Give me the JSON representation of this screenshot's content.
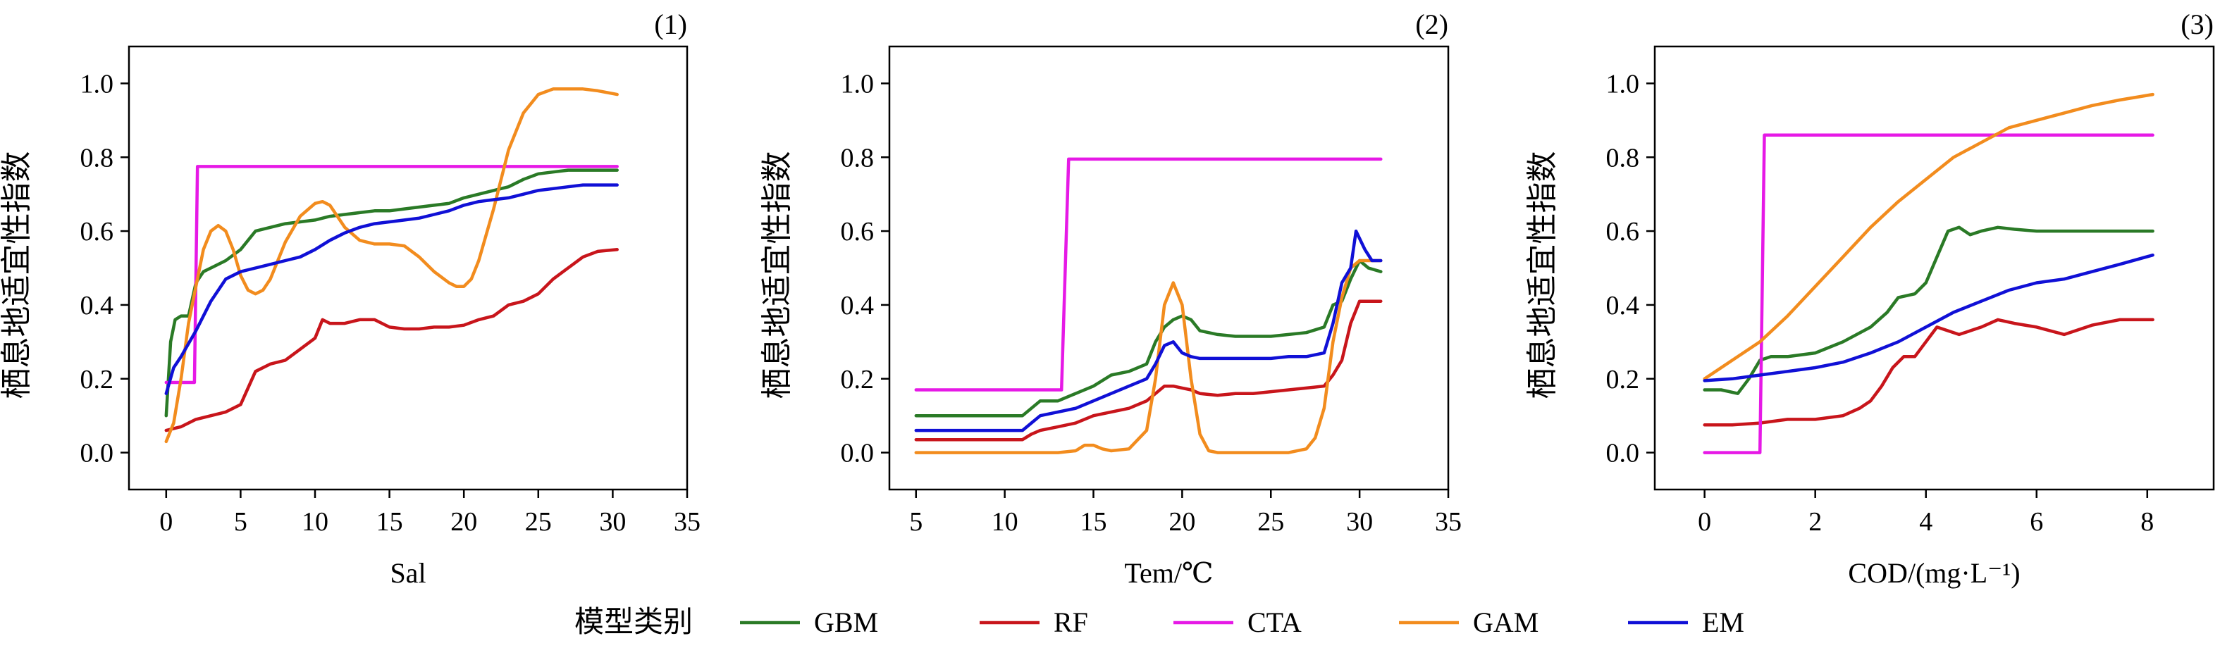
{
  "chart_data": [
    {
      "type": "line",
      "panel_label": "(1)",
      "xlabel": "Sal",
      "ylabel": "栖息地适宜性指数",
      "xlim": [
        -2.5,
        35
      ],
      "ylim": [
        -0.1,
        1.1
      ],
      "xticks": [
        0,
        5,
        10,
        15,
        20,
        25,
        30,
        35
      ],
      "yticks": [
        0.0,
        0.2,
        0.4,
        0.6,
        0.8,
        1.0
      ],
      "series": [
        {
          "name": "GBM",
          "x": [
            0,
            0.3,
            0.6,
            1,
            1.5,
            2,
            2.5,
            3,
            4,
            5,
            6,
            7,
            8,
            9,
            10,
            11,
            12,
            13,
            14,
            15,
            16,
            17,
            18,
            19,
            20,
            21,
            22,
            23,
            24,
            25,
            26,
            27,
            28,
            29,
            30.3
          ],
          "y": [
            0.1,
            0.3,
            0.36,
            0.37,
            0.37,
            0.46,
            0.49,
            0.5,
            0.52,
            0.55,
            0.6,
            0.61,
            0.62,
            0.625,
            0.63,
            0.64,
            0.645,
            0.65,
            0.655,
            0.655,
            0.66,
            0.665,
            0.67,
            0.675,
            0.69,
            0.7,
            0.71,
            0.72,
            0.74,
            0.755,
            0.76,
            0.765,
            0.765,
            0.765,
            0.765
          ]
        },
        {
          "name": "RF",
          "x": [
            0,
            1,
            2,
            3,
            4,
            5,
            6,
            7,
            8,
            9,
            10,
            10.5,
            11,
            12,
            13,
            14,
            15,
            16,
            17,
            18,
            19,
            20,
            21,
            22,
            23,
            24,
            25,
            26,
            27,
            28,
            29,
            30.3
          ],
          "y": [
            0.06,
            0.07,
            0.09,
            0.1,
            0.11,
            0.13,
            0.22,
            0.24,
            0.25,
            0.28,
            0.31,
            0.36,
            0.35,
            0.35,
            0.36,
            0.36,
            0.34,
            0.335,
            0.335,
            0.34,
            0.34,
            0.345,
            0.36,
            0.37,
            0.4,
            0.41,
            0.43,
            0.47,
            0.5,
            0.53,
            0.545,
            0.55
          ]
        },
        {
          "name": "CTA",
          "x": [
            0,
            1,
            1.9,
            2.1,
            30.3
          ],
          "y": [
            0.19,
            0.19,
            0.19,
            0.775,
            0.775
          ]
        },
        {
          "name": "GAM",
          "x": [
            0,
            0.5,
            1,
            1.5,
            2,
            2.5,
            3,
            3.5,
            4,
            4.5,
            5,
            5.5,
            6,
            6.5,
            7,
            7.5,
            8,
            9,
            10,
            10.5,
            11,
            12,
            13,
            14,
            15,
            16,
            17,
            18,
            19,
            19.5,
            20,
            20.5,
            21,
            22,
            23,
            24,
            25,
            26,
            27,
            28,
            29,
            30.3
          ],
          "y": [
            0.03,
            0.08,
            0.2,
            0.35,
            0.45,
            0.55,
            0.6,
            0.615,
            0.6,
            0.55,
            0.48,
            0.44,
            0.43,
            0.44,
            0.47,
            0.52,
            0.57,
            0.64,
            0.675,
            0.68,
            0.67,
            0.61,
            0.575,
            0.565,
            0.565,
            0.56,
            0.53,
            0.49,
            0.46,
            0.45,
            0.45,
            0.47,
            0.52,
            0.66,
            0.82,
            0.92,
            0.97,
            0.985,
            0.985,
            0.985,
            0.98,
            0.97
          ]
        },
        {
          "name": "EM",
          "x": [
            0,
            0.5,
            1,
            2,
            3,
            4,
            5,
            6,
            7,
            8,
            9,
            10,
            11,
            12,
            13,
            14,
            15,
            16,
            17,
            18,
            19,
            20,
            21,
            22,
            23,
            24,
            25,
            26,
            27,
            28,
            29,
            30.3
          ],
          "y": [
            0.16,
            0.23,
            0.26,
            0.33,
            0.41,
            0.47,
            0.49,
            0.5,
            0.51,
            0.52,
            0.53,
            0.55,
            0.575,
            0.595,
            0.61,
            0.62,
            0.625,
            0.63,
            0.635,
            0.645,
            0.655,
            0.67,
            0.68,
            0.685,
            0.69,
            0.7,
            0.71,
            0.715,
            0.72,
            0.725,
            0.725,
            0.725
          ]
        }
      ]
    },
    {
      "type": "line",
      "panel_label": "(2)",
      "xlabel": "Tem/℃",
      "ylabel": "栖息地适宜性指数",
      "xlim": [
        3.5,
        35
      ],
      "ylim": [
        -0.1,
        1.1
      ],
      "xticks": [
        5,
        10,
        15,
        20,
        25,
        30,
        35
      ],
      "yticks": [
        0.0,
        0.2,
        0.4,
        0.6,
        0.8,
        1.0
      ],
      "series": [
        {
          "name": "GBM",
          "x": [
            5,
            11,
            11.5,
            12,
            13,
            14,
            15,
            16,
            17,
            18,
            18.5,
            19,
            19.5,
            20,
            20.5,
            21,
            22,
            23,
            24,
            25,
            26,
            27,
            28,
            28.5,
            29,
            29.5,
            30,
            30.5,
            31.2
          ],
          "y": [
            0.1,
            0.1,
            0.12,
            0.14,
            0.14,
            0.16,
            0.18,
            0.21,
            0.22,
            0.24,
            0.3,
            0.34,
            0.36,
            0.37,
            0.36,
            0.33,
            0.32,
            0.315,
            0.315,
            0.315,
            0.32,
            0.325,
            0.34,
            0.4,
            0.41,
            0.47,
            0.52,
            0.5,
            0.49
          ]
        },
        {
          "name": "RF",
          "x": [
            5,
            11,
            11.5,
            12,
            13,
            14,
            15,
            16,
            17,
            18,
            18.5,
            19,
            19.5,
            20,
            20.5,
            21,
            22,
            23,
            24,
            25,
            26,
            27,
            28,
            28.5,
            29,
            29.5,
            30,
            30.5,
            31.2
          ],
          "y": [
            0.035,
            0.035,
            0.05,
            0.06,
            0.07,
            0.08,
            0.1,
            0.11,
            0.12,
            0.14,
            0.16,
            0.18,
            0.18,
            0.175,
            0.17,
            0.16,
            0.155,
            0.16,
            0.16,
            0.165,
            0.17,
            0.175,
            0.18,
            0.21,
            0.25,
            0.35,
            0.41,
            0.41,
            0.41
          ]
        },
        {
          "name": "CTA",
          "x": [
            5,
            13.2,
            13.6,
            31.2
          ],
          "y": [
            0.17,
            0.17,
            0.795,
            0.795
          ]
        },
        {
          "name": "GAM",
          "x": [
            5,
            10,
            13,
            14,
            14.5,
            15,
            15.5,
            16,
            17,
            18,
            18.5,
            19,
            19.5,
            20,
            20.5,
            21,
            21.5,
            22,
            23,
            24,
            25,
            26,
            27,
            27.5,
            28,
            28.5,
            29,
            29.5,
            30,
            30.5,
            31.2
          ],
          "y": [
            0.0,
            0.0,
            0.0,
            0.005,
            0.02,
            0.02,
            0.01,
            0.005,
            0.01,
            0.06,
            0.2,
            0.4,
            0.46,
            0.4,
            0.2,
            0.05,
            0.005,
            0.0,
            0.0,
            0.0,
            0.0,
            0.0,
            0.01,
            0.04,
            0.12,
            0.3,
            0.42,
            0.5,
            0.52,
            0.52,
            0.52
          ]
        },
        {
          "name": "EM",
          "x": [
            5,
            11,
            11.5,
            12,
            13,
            14,
            15,
            16,
            17,
            18,
            18.5,
            19,
            19.5,
            20,
            20.5,
            21,
            22,
            23,
            24,
            25,
            26,
            27,
            28,
            28.5,
            29,
            29.5,
            29.8,
            30.3,
            30.7,
            31.2
          ],
          "y": [
            0.06,
            0.06,
            0.08,
            0.1,
            0.11,
            0.12,
            0.14,
            0.16,
            0.18,
            0.2,
            0.24,
            0.29,
            0.3,
            0.27,
            0.26,
            0.255,
            0.255,
            0.255,
            0.255,
            0.255,
            0.26,
            0.26,
            0.27,
            0.35,
            0.46,
            0.5,
            0.6,
            0.55,
            0.52,
            0.52
          ]
        }
      ]
    },
    {
      "type": "line",
      "panel_label": "(3)",
      "xlabel": "COD/(mg·L⁻¹)",
      "ylabel": "栖息地适宜性指数",
      "xlim": [
        -0.9,
        9.2
      ],
      "ylim": [
        -0.1,
        1.1
      ],
      "xticks": [
        0,
        2,
        4,
        6,
        8
      ],
      "yticks": [
        0.0,
        0.2,
        0.4,
        0.6,
        0.8,
        1.0
      ],
      "series": [
        {
          "name": "GBM",
          "x": [
            0,
            0.3,
            0.6,
            0.8,
            1.0,
            1.2,
            1.5,
            2,
            2.5,
            3,
            3.3,
            3.5,
            3.8,
            4,
            4.2,
            4.4,
            4.6,
            4.8,
            5,
            5.3,
            5.6,
            6,
            6.5,
            7,
            7.5,
            8.1
          ],
          "y": [
            0.17,
            0.17,
            0.16,
            0.2,
            0.25,
            0.26,
            0.26,
            0.27,
            0.3,
            0.34,
            0.38,
            0.42,
            0.43,
            0.46,
            0.53,
            0.6,
            0.61,
            0.59,
            0.6,
            0.61,
            0.605,
            0.6,
            0.6,
            0.6,
            0.6,
            0.6
          ]
        },
        {
          "name": "RF",
          "x": [
            0,
            0.5,
            1,
            1.5,
            2,
            2.5,
            2.8,
            3,
            3.2,
            3.4,
            3.6,
            3.8,
            4,
            4.2,
            4.4,
            4.6,
            5,
            5.3,
            5.6,
            6,
            6.5,
            7,
            7.5,
            8.1
          ],
          "y": [
            0.075,
            0.075,
            0.08,
            0.09,
            0.09,
            0.1,
            0.12,
            0.14,
            0.18,
            0.23,
            0.26,
            0.26,
            0.3,
            0.34,
            0.33,
            0.32,
            0.34,
            0.36,
            0.35,
            0.34,
            0.32,
            0.345,
            0.36,
            0.36
          ]
        },
        {
          "name": "CTA",
          "x": [
            0,
            1.0,
            1.08,
            8.1
          ],
          "y": [
            0.0,
            0.0,
            0.86,
            0.86
          ]
        },
        {
          "name": "GAM",
          "x": [
            0,
            0.5,
            1,
            1.5,
            2,
            2.5,
            3,
            3.5,
            4,
            4.5,
            5,
            5.5,
            6,
            6.5,
            7,
            7.5,
            8.1
          ],
          "y": [
            0.2,
            0.25,
            0.3,
            0.37,
            0.45,
            0.53,
            0.61,
            0.68,
            0.74,
            0.8,
            0.84,
            0.88,
            0.9,
            0.92,
            0.94,
            0.955,
            0.97
          ]
        },
        {
          "name": "EM",
          "x": [
            0,
            0.5,
            1,
            1.5,
            2,
            2.5,
            3,
            3.5,
            4,
            4.5,
            5,
            5.5,
            6,
            6.5,
            7,
            7.5,
            8.1
          ],
          "y": [
            0.195,
            0.2,
            0.21,
            0.22,
            0.23,
            0.245,
            0.27,
            0.3,
            0.34,
            0.38,
            0.41,
            0.44,
            0.46,
            0.47,
            0.49,
            0.51,
            0.535
          ]
        }
      ]
    }
  ],
  "legend": {
    "title": "模型类别",
    "placement": "bottom-center",
    "items": [
      {
        "name": "GBM",
        "color": "#2a7a26"
      },
      {
        "name": "RF",
        "color": "#c8151b"
      },
      {
        "name": "CTA",
        "color": "#e619e6"
      },
      {
        "name": "GAM",
        "color": "#f28c1e"
      },
      {
        "name": "EM",
        "color": "#1010d6"
      }
    ]
  }
}
